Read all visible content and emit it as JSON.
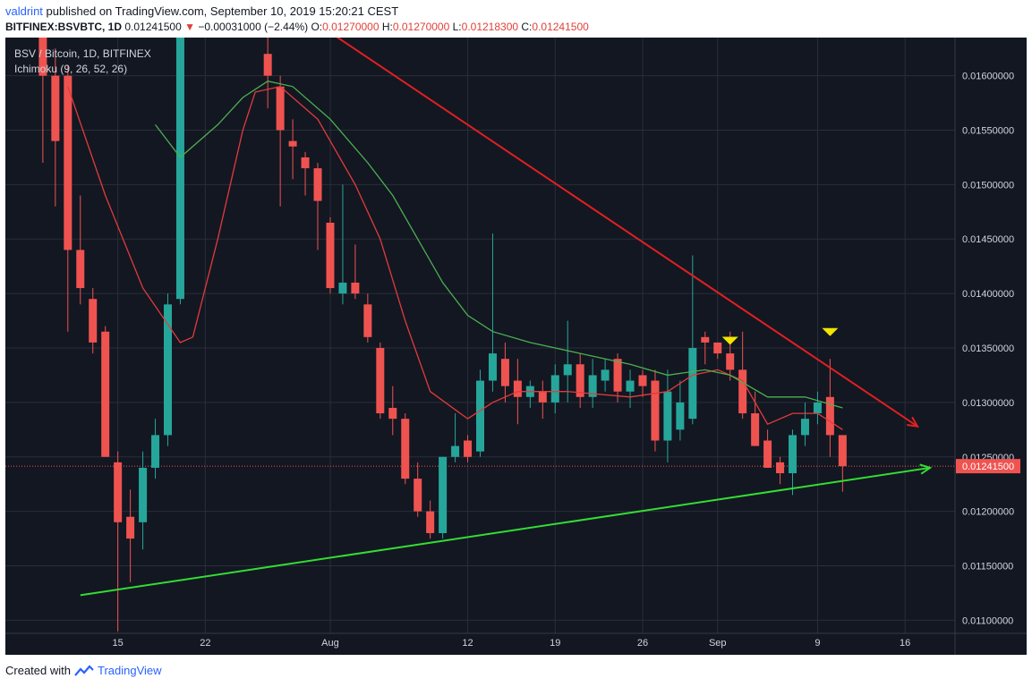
{
  "header": {
    "author": "valdrint",
    "published_text": "published on TradingView.com, September 10, 2019 15:20:21 CEST"
  },
  "symbol_line": {
    "symbol": "BITFINEX:BSVBTC, 1D",
    "last": "0.01241500",
    "change_arrow": "▼",
    "change": "−0.00031000 (−2.44%)",
    "o_label": "O:",
    "o_value": "0.01270000",
    "h_label": "H:",
    "h_value": "0.01270000",
    "l_label": "L:",
    "l_value": "0.01218300",
    "c_label": "C:",
    "c_value": "0.01241500"
  },
  "legend": {
    "title": "BSV / Bitcoin, 1D, BITFINEX",
    "indicator": "Ichimoku (9, 26, 52, 26)"
  },
  "colors": {
    "background": "#131722",
    "grid": "#2a2e39",
    "up": "#26a69a",
    "down": "#ef5350",
    "conversion": "#e33b3b",
    "base": "#4caf50",
    "trend_down": "#e02020",
    "trend_up": "#33dd33",
    "marker": "#f2e600",
    "last_price": "#ef5350"
  },
  "footer": {
    "created_with": "Created with",
    "brand": "TradingView"
  },
  "chart_data": {
    "type": "candlestick",
    "x_ticks": [
      {
        "label": "15",
        "date": "2019-07-15"
      },
      {
        "label": "22",
        "date": "2019-07-22"
      },
      {
        "label": "Aug",
        "date": "2019-08-01"
      },
      {
        "label": "12",
        "date": "2019-08-12"
      },
      {
        "label": "19",
        "date": "2019-08-19"
      },
      {
        "label": "26",
        "date": "2019-08-26"
      },
      {
        "label": "Sep",
        "date": "2019-09-01"
      },
      {
        "label": "9",
        "date": "2019-09-09"
      },
      {
        "label": "16",
        "date": "2019-09-16"
      }
    ],
    "y_ticks": [
      "0.01600000",
      "0.01550000",
      "0.01500000",
      "0.01450000",
      "0.01400000",
      "0.01350000",
      "0.01300000",
      "0.01250000",
      "0.01200000",
      "0.01150000",
      "0.01100000"
    ],
    "ylim": [
      0.01088,
      0.01635
    ],
    "xlim": [
      "2019-07-06",
      "2019-09-20"
    ],
    "last_price": 0.012415,
    "last_price_label": "0.01241500",
    "candles": [
      {
        "date": "2019-07-09",
        "o": 0.0164,
        "h": 0.0165,
        "l": 0.0152,
        "c": 0.016
      },
      {
        "date": "2019-07-10",
        "o": 0.016,
        "h": 0.01625,
        "l": 0.0148,
        "c": 0.0154
      },
      {
        "date": "2019-07-11",
        "o": 0.016,
        "h": 0.0161,
        "l": 0.01365,
        "c": 0.0144
      },
      {
        "date": "2019-07-12",
        "o": 0.0144,
        "h": 0.0149,
        "l": 0.0139,
        "c": 0.01405
      },
      {
        "date": "2019-07-13",
        "o": 0.01395,
        "h": 0.01405,
        "l": 0.01345,
        "c": 0.01355
      },
      {
        "date": "2019-07-14",
        "o": 0.01365,
        "h": 0.0137,
        "l": 0.0125,
        "c": 0.0125
      },
      {
        "date": "2019-07-15",
        "o": 0.01245,
        "h": 0.01255,
        "l": 0.0109,
        "c": 0.0119
      },
      {
        "date": "2019-07-16",
        "o": 0.01195,
        "h": 0.0122,
        "l": 0.01135,
        "c": 0.01175
      },
      {
        "date": "2019-07-17",
        "o": 0.0119,
        "h": 0.01255,
        "l": 0.01165,
        "c": 0.0124
      },
      {
        "date": "2019-07-18",
        "o": 0.0124,
        "h": 0.01285,
        "l": 0.0123,
        "c": 0.0127
      },
      {
        "date": "2019-07-19",
        "o": 0.0127,
        "h": 0.014,
        "l": 0.0126,
        "c": 0.0139
      },
      {
        "date": "2019-07-20",
        "o": 0.01395,
        "h": 0.0165,
        "l": 0.0139,
        "c": 0.0164
      },
      {
        "date": "2019-07-27",
        "o": 0.0162,
        "h": 0.0164,
        "l": 0.0157,
        "c": 0.016
      },
      {
        "date": "2019-07-28",
        "o": 0.0159,
        "h": 0.016,
        "l": 0.0148,
        "c": 0.0155
      },
      {
        "date": "2019-07-29",
        "o": 0.0154,
        "h": 0.0156,
        "l": 0.01505,
        "c": 0.01535
      },
      {
        "date": "2019-07-30",
        "o": 0.01525,
        "h": 0.0153,
        "l": 0.0149,
        "c": 0.01515
      },
      {
        "date": "2019-07-31",
        "o": 0.01515,
        "h": 0.0152,
        "l": 0.0144,
        "c": 0.01485
      },
      {
        "date": "2019-08-01",
        "o": 0.01465,
        "h": 0.0147,
        "l": 0.014,
        "c": 0.01405
      },
      {
        "date": "2019-08-02",
        "o": 0.014,
        "h": 0.015,
        "l": 0.0139,
        "c": 0.0141
      },
      {
        "date": "2019-08-03",
        "o": 0.0141,
        "h": 0.01445,
        "l": 0.01395,
        "c": 0.014
      },
      {
        "date": "2019-08-04",
        "o": 0.0139,
        "h": 0.014,
        "l": 0.01355,
        "c": 0.0136
      },
      {
        "date": "2019-08-05",
        "o": 0.0135,
        "h": 0.01355,
        "l": 0.01285,
        "c": 0.0129
      },
      {
        "date": "2019-08-06",
        "o": 0.01295,
        "h": 0.01315,
        "l": 0.0127,
        "c": 0.01285
      },
      {
        "date": "2019-08-07",
        "o": 0.01285,
        "h": 0.0129,
        "l": 0.01225,
        "c": 0.0123
      },
      {
        "date": "2019-08-08",
        "o": 0.0123,
        "h": 0.01245,
        "l": 0.01195,
        "c": 0.012
      },
      {
        "date": "2019-08-09",
        "o": 0.012,
        "h": 0.0121,
        "l": 0.01175,
        "c": 0.0118
      },
      {
        "date": "2019-08-10",
        "o": 0.0118,
        "h": 0.0125,
        "l": 0.01175,
        "c": 0.0125
      },
      {
        "date": "2019-08-11",
        "o": 0.0125,
        "h": 0.0129,
        "l": 0.01245,
        "c": 0.0126
      },
      {
        "date": "2019-08-12",
        "o": 0.01265,
        "h": 0.0127,
        "l": 0.01245,
        "c": 0.0125
      },
      {
        "date": "2019-08-13",
        "o": 0.01255,
        "h": 0.0133,
        "l": 0.0125,
        "c": 0.0132
      },
      {
        "date": "2019-08-14",
        "o": 0.0132,
        "h": 0.01455,
        "l": 0.0131,
        "c": 0.01345
      },
      {
        "date": "2019-08-15",
        "o": 0.0134,
        "h": 0.01355,
        "l": 0.013,
        "c": 0.01315
      },
      {
        "date": "2019-08-16",
        "o": 0.0132,
        "h": 0.0134,
        "l": 0.0128,
        "c": 0.01305
      },
      {
        "date": "2019-08-17",
        "o": 0.01305,
        "h": 0.0132,
        "l": 0.01295,
        "c": 0.01315
      },
      {
        "date": "2019-08-18",
        "o": 0.0131,
        "h": 0.0132,
        "l": 0.01285,
        "c": 0.013
      },
      {
        "date": "2019-08-19",
        "o": 0.013,
        "h": 0.01335,
        "l": 0.0129,
        "c": 0.01325
      },
      {
        "date": "2019-08-20",
        "o": 0.01325,
        "h": 0.01375,
        "l": 0.013,
        "c": 0.01335
      },
      {
        "date": "2019-08-21",
        "o": 0.01335,
        "h": 0.01345,
        "l": 0.01295,
        "c": 0.01305
      },
      {
        "date": "2019-08-22",
        "o": 0.01305,
        "h": 0.0134,
        "l": 0.01295,
        "c": 0.01325
      },
      {
        "date": "2019-08-23",
        "o": 0.0132,
        "h": 0.0134,
        "l": 0.0131,
        "c": 0.0133
      },
      {
        "date": "2019-08-24",
        "o": 0.0134,
        "h": 0.01345,
        "l": 0.013,
        "c": 0.0131
      },
      {
        "date": "2019-08-25",
        "o": 0.0131,
        "h": 0.0133,
        "l": 0.01295,
        "c": 0.0132
      },
      {
        "date": "2019-08-26",
        "o": 0.01325,
        "h": 0.0133,
        "l": 0.01305,
        "c": 0.01315
      },
      {
        "date": "2019-08-27",
        "o": 0.0132,
        "h": 0.0133,
        "l": 0.01255,
        "c": 0.01265
      },
      {
        "date": "2019-08-28",
        "o": 0.01265,
        "h": 0.0133,
        "l": 0.01245,
        "c": 0.0131
      },
      {
        "date": "2019-08-29",
        "o": 0.01275,
        "h": 0.0132,
        "l": 0.01265,
        "c": 0.013
      },
      {
        "date": "2019-08-30",
        "o": 0.01285,
        "h": 0.01435,
        "l": 0.0128,
        "c": 0.0135
      },
      {
        "date": "2019-08-31",
        "o": 0.0136,
        "h": 0.01365,
        "l": 0.01335,
        "c": 0.01355
      },
      {
        "date": "2019-09-01",
        "o": 0.01355,
        "h": 0.01355,
        "l": 0.0134,
        "c": 0.01345
      },
      {
        "date": "2019-09-02",
        "o": 0.01345,
        "h": 0.01365,
        "l": 0.0132,
        "c": 0.0133
      },
      {
        "date": "2019-09-03",
        "o": 0.0133,
        "h": 0.01365,
        "l": 0.01285,
        "c": 0.0129
      },
      {
        "date": "2019-09-04",
        "o": 0.0129,
        "h": 0.0131,
        "l": 0.0126,
        "c": 0.0126
      },
      {
        "date": "2019-09-05",
        "o": 0.01265,
        "h": 0.01275,
        "l": 0.0124,
        "c": 0.0124
      },
      {
        "date": "2019-09-06",
        "o": 0.01245,
        "h": 0.0125,
        "l": 0.01225,
        "c": 0.01235
      },
      {
        "date": "2019-09-07",
        "o": 0.01235,
        "h": 0.01275,
        "l": 0.01215,
        "c": 0.0127
      },
      {
        "date": "2019-09-08",
        "o": 0.0127,
        "h": 0.013,
        "l": 0.0126,
        "c": 0.01285
      },
      {
        "date": "2019-09-09",
        "o": 0.0129,
        "h": 0.0131,
        "l": 0.0128,
        "c": 0.013
      },
      {
        "date": "2019-09-10",
        "o": 0.01305,
        "h": 0.0134,
        "l": 0.0125,
        "c": 0.0127
      },
      {
        "date": "2019-09-11",
        "o": 0.0127,
        "h": 0.0127,
        "l": 0.01218,
        "c": 0.012415
      }
    ],
    "conversion_line": [
      {
        "date": "2019-07-11",
        "v": 0.0159
      },
      {
        "date": "2019-07-14",
        "v": 0.0149
      },
      {
        "date": "2019-07-17",
        "v": 0.01405
      },
      {
        "date": "2019-07-20",
        "v": 0.01355
      },
      {
        "date": "2019-07-21",
        "v": 0.0136
      },
      {
        "date": "2019-07-23",
        "v": 0.0145
      },
      {
        "date": "2019-07-25",
        "v": 0.0155
      },
      {
        "date": "2019-07-26",
        "v": 0.01585
      },
      {
        "date": "2019-07-28",
        "v": 0.0159
      },
      {
        "date": "2019-07-31",
        "v": 0.0156
      },
      {
        "date": "2019-08-03",
        "v": 0.015
      },
      {
        "date": "2019-08-05",
        "v": 0.0145
      },
      {
        "date": "2019-08-07",
        "v": 0.01375
      },
      {
        "date": "2019-08-09",
        "v": 0.0131
      },
      {
        "date": "2019-08-12",
        "v": 0.01285
      },
      {
        "date": "2019-08-14",
        "v": 0.013
      },
      {
        "date": "2019-08-16",
        "v": 0.0131
      },
      {
        "date": "2019-08-20",
        "v": 0.0131
      },
      {
        "date": "2019-08-25",
        "v": 0.01305
      },
      {
        "date": "2019-08-28",
        "v": 0.0131
      },
      {
        "date": "2019-08-30",
        "v": 0.01325
      },
      {
        "date": "2019-09-01",
        "v": 0.0133
      },
      {
        "date": "2019-09-03",
        "v": 0.0132
      },
      {
        "date": "2019-09-05",
        "v": 0.0128
      },
      {
        "date": "2019-09-07",
        "v": 0.0129
      },
      {
        "date": "2019-09-09",
        "v": 0.0129
      },
      {
        "date": "2019-09-11",
        "v": 0.01275
      }
    ],
    "base_line": [
      {
        "date": "2019-07-18",
        "v": 0.01555
      },
      {
        "date": "2019-07-20",
        "v": 0.01525
      },
      {
        "date": "2019-07-23",
        "v": 0.01555
      },
      {
        "date": "2019-07-25",
        "v": 0.0158
      },
      {
        "date": "2019-07-27",
        "v": 0.01595
      },
      {
        "date": "2019-07-29",
        "v": 0.0159
      },
      {
        "date": "2019-08-01",
        "v": 0.0156
      },
      {
        "date": "2019-08-04",
        "v": 0.0152
      },
      {
        "date": "2019-08-06",
        "v": 0.0149
      },
      {
        "date": "2019-08-08",
        "v": 0.0145
      },
      {
        "date": "2019-08-10",
        "v": 0.0141
      },
      {
        "date": "2019-08-12",
        "v": 0.0138
      },
      {
        "date": "2019-08-14",
        "v": 0.01365
      },
      {
        "date": "2019-08-17",
        "v": 0.01355
      },
      {
        "date": "2019-08-21",
        "v": 0.01345
      },
      {
        "date": "2019-08-25",
        "v": 0.01335
      },
      {
        "date": "2019-08-28",
        "v": 0.01325
      },
      {
        "date": "2019-08-31",
        "v": 0.0133
      },
      {
        "date": "2019-09-02",
        "v": 0.01325
      },
      {
        "date": "2019-09-05",
        "v": 0.01305
      },
      {
        "date": "2019-09-08",
        "v": 0.01305
      },
      {
        "date": "2019-09-11",
        "v": 0.01295
      }
    ],
    "trendlines": [
      {
        "name": "resistance",
        "from": {
          "date": "2019-07-30",
          "v": 0.01655
        },
        "to": {
          "date": "2019-09-17",
          "v": 0.01278
        },
        "color_key": "trend_down"
      },
      {
        "name": "support",
        "from": {
          "date": "2019-07-12",
          "v": 0.01123
        },
        "to": {
          "date": "2019-09-18",
          "v": 0.0124
        },
        "color_key": "trend_up"
      }
    ],
    "markers": [
      {
        "date": "2019-09-02",
        "v": 0.01357
      },
      {
        "date": "2019-09-10",
        "v": 0.01365
      }
    ]
  }
}
